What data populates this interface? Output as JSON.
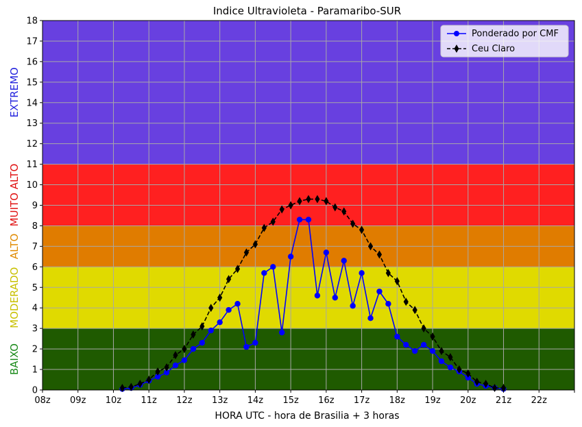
{
  "chart_data": {
    "type": "line",
    "title": "Indice Ultravioleta - Paramaribo-SUR",
    "xlabel": "HORA UTC - hora de Brasilia + 3 horas",
    "ylabel": "",
    "xlim": [
      8,
      23
    ],
    "ylim": [
      0,
      18
    ],
    "x_tick_values": [
      8,
      9,
      10,
      11,
      12,
      13,
      14,
      15,
      16,
      17,
      18,
      19,
      20,
      21,
      22
    ],
    "x_tick_labels": [
      "08z",
      "09z",
      "10z",
      "11z",
      "12z",
      "13z",
      "14z",
      "15z",
      "16z",
      "17z",
      "18z",
      "19z",
      "20z",
      "21z",
      "22z"
    ],
    "y_ticks": [
      0,
      1,
      2,
      3,
      4,
      5,
      6,
      7,
      8,
      9,
      10,
      11,
      12,
      13,
      14,
      15,
      16,
      17,
      18
    ],
    "grid": true,
    "legend_position": "top-right",
    "bands": [
      {
        "name": "BAIXO",
        "from": 0,
        "to": 3,
        "color": "#1f5a00",
        "label_color": "#1a8a1a"
      },
      {
        "name": "MODERADO",
        "from": 3,
        "to": 6,
        "color": "#e0da00",
        "label_color": "#c8c000"
      },
      {
        "name": "ALTO",
        "from": 6,
        "to": 8,
        "color": "#e07c00",
        "label_color": "#e08a00"
      },
      {
        "name": "MUITO ALTO",
        "from": 8,
        "to": 11,
        "color": "#ff2020",
        "label_color": "#e01010"
      },
      {
        "name": "EXTREMO",
        "from": 11,
        "to": 18,
        "color": "#6840e0",
        "label_color": "#2222dd"
      }
    ],
    "series": [
      {
        "name": "Ponderado por CMF",
        "color": "#0000ff",
        "linestyle": "solid",
        "marker": "circle",
        "x": [
          10.25,
          10.5,
          10.75,
          11.0,
          11.25,
          11.5,
          11.75,
          12.0,
          12.25,
          12.5,
          12.75,
          13.0,
          13.25,
          13.5,
          13.75,
          14.0,
          14.25,
          14.5,
          14.75,
          15.0,
          15.25,
          15.5,
          15.75,
          16.0,
          16.25,
          16.5,
          16.75,
          17.0,
          17.25,
          17.5,
          17.75,
          18.0,
          18.25,
          18.5,
          18.75,
          19.0,
          19.25,
          19.5,
          19.75,
          20.0,
          20.25,
          20.5,
          20.75,
          21.0
        ],
        "y": [
          0.05,
          0.1,
          0.25,
          0.45,
          0.65,
          0.85,
          1.2,
          1.45,
          2.0,
          2.3,
          2.9,
          3.3,
          3.9,
          4.2,
          2.1,
          2.3,
          5.7,
          6.0,
          2.8,
          6.5,
          8.3,
          8.3,
          4.6,
          6.7,
          4.5,
          6.3,
          4.1,
          5.7,
          3.5,
          4.8,
          4.2,
          2.6,
          2.2,
          1.9,
          2.2,
          1.9,
          1.4,
          1.1,
          0.9,
          0.6,
          0.3,
          0.2,
          0.1,
          0.05
        ]
      },
      {
        "name": "Ceu Claro",
        "color": "#000000",
        "linestyle": "dashed",
        "marker": "thin_diamond",
        "x": [
          10.25,
          10.5,
          10.75,
          11.0,
          11.25,
          11.5,
          11.75,
          12.0,
          12.25,
          12.5,
          12.75,
          13.0,
          13.25,
          13.5,
          13.75,
          14.0,
          14.25,
          14.5,
          14.75,
          15.0,
          15.25,
          15.5,
          15.75,
          16.0,
          16.25,
          16.5,
          16.75,
          17.0,
          17.25,
          17.5,
          17.75,
          18.0,
          18.25,
          18.5,
          18.75,
          19.0,
          19.25,
          19.5,
          19.75,
          20.0,
          20.25,
          20.5,
          20.75,
          21.0
        ],
        "y": [
          0.1,
          0.15,
          0.3,
          0.5,
          0.9,
          1.1,
          1.7,
          2.0,
          2.7,
          3.1,
          4.0,
          4.5,
          5.4,
          5.9,
          6.7,
          7.1,
          7.9,
          8.2,
          8.8,
          9.0,
          9.2,
          9.3,
          9.3,
          9.2,
          8.9,
          8.7,
          8.1,
          7.8,
          7.0,
          6.6,
          5.7,
          5.3,
          4.3,
          3.9,
          3.0,
          2.6,
          1.9,
          1.6,
          1.0,
          0.8,
          0.4,
          0.3,
          0.1,
          0.1
        ]
      }
    ]
  }
}
